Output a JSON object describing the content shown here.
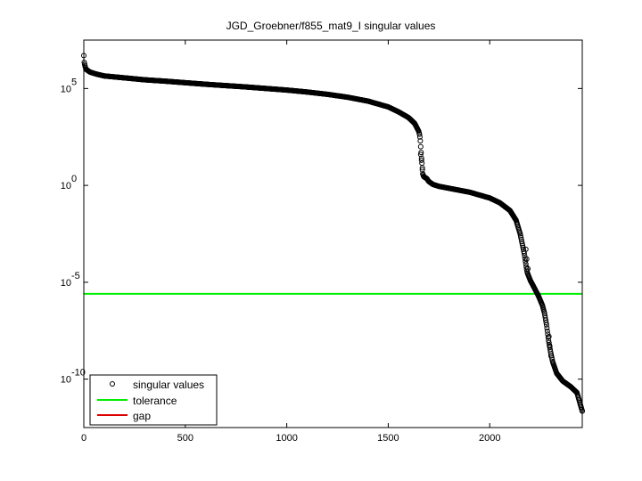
{
  "chart_data": {
    "type": "scatter",
    "title": "JGD_Groebner/f855_mat9_I singular values",
    "xlabel": "",
    "ylabel": "",
    "xlim": [
      0,
      2456
    ],
    "ylim_log10": [
      -12.5,
      7.5
    ],
    "y_scale": "log",
    "x_ticks": [
      0,
      500,
      1000,
      1500,
      2000
    ],
    "x_tick_labels": [
      "0",
      "500",
      "1000",
      "1500",
      "2000"
    ],
    "y_ticks": [
      {
        "base": "10",
        "exp": "5",
        "value_log10": 5
      },
      {
        "base": "10",
        "exp": "0",
        "value_log10": 0
      },
      {
        "base": "10",
        "exp": "-5",
        "value_log10": -5
      },
      {
        "base": "10",
        "exp": "-10",
        "value_log10": -10
      }
    ],
    "grid": false,
    "legend_position": "bottom-left",
    "series": [
      {
        "name": "singular values",
        "style": "markers",
        "color": "#000000",
        "points_log10": [
          [
            0,
            6.7
          ],
          [
            1,
            6.5
          ],
          [
            2,
            6.35
          ],
          [
            5,
            6.2
          ],
          [
            10,
            6.0
          ],
          [
            30,
            5.85
          ],
          [
            60,
            5.75
          ],
          [
            100,
            5.65
          ],
          [
            200,
            5.55
          ],
          [
            300,
            5.45
          ],
          [
            400,
            5.38
          ],
          [
            500,
            5.3
          ],
          [
            600,
            5.22
          ],
          [
            700,
            5.15
          ],
          [
            800,
            5.08
          ],
          [
            900,
            5.0
          ],
          [
            1000,
            4.92
          ],
          [
            1100,
            4.82
          ],
          [
            1200,
            4.7
          ],
          [
            1300,
            4.55
          ],
          [
            1400,
            4.35
          ],
          [
            1450,
            4.2
          ],
          [
            1500,
            4.05
          ],
          [
            1550,
            3.8
          ],
          [
            1600,
            3.5
          ],
          [
            1630,
            3.2
          ],
          [
            1650,
            2.8
          ],
          [
            1655,
            2.6
          ],
          [
            1658,
            2.3
          ],
          [
            1660,
            2.0
          ],
          [
            1662,
            1.7
          ],
          [
            1664,
            1.4
          ],
          [
            1666,
            1.15
          ],
          [
            1668,
            0.9
          ],
          [
            1670,
            0.6
          ],
          [
            1675,
            0.45
          ],
          [
            1690,
            0.35
          ],
          [
            1700,
            0.2
          ],
          [
            1720,
            0.05
          ],
          [
            1750,
            -0.05
          ],
          [
            1800,
            -0.15
          ],
          [
            1900,
            -0.35
          ],
          [
            2000,
            -0.65
          ],
          [
            2050,
            -0.9
          ],
          [
            2100,
            -1.3
          ],
          [
            2130,
            -1.8
          ],
          [
            2150,
            -2.5
          ],
          [
            2160,
            -3.0
          ],
          [
            2170,
            -3.5
          ],
          [
            2180,
            -4.2
          ],
          [
            2185,
            -4.5
          ],
          [
            2200,
            -4.9
          ],
          [
            2220,
            -5.3
          ],
          [
            2240,
            -5.7
          ],
          [
            2260,
            -6.2
          ],
          [
            2270,
            -6.6
          ],
          [
            2280,
            -7.2
          ],
          [
            2290,
            -8.0
          ],
          [
            2300,
            -8.6
          ],
          [
            2310,
            -9.1
          ],
          [
            2330,
            -9.7
          ],
          [
            2360,
            -10.1
          ],
          [
            2400,
            -10.4
          ],
          [
            2430,
            -10.7
          ],
          [
            2456,
            -11.65
          ]
        ]
      },
      {
        "name": "tolerance",
        "style": "line",
        "color": "#00ee00",
        "y_log10": -5.6
      },
      {
        "name": "gap",
        "style": "line",
        "color": "#dd0000"
      }
    ]
  }
}
